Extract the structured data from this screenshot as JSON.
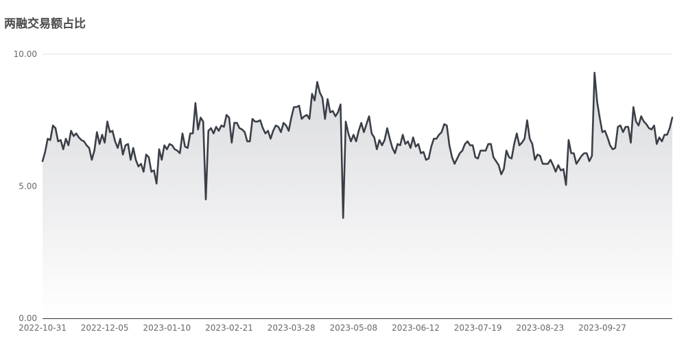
{
  "chart_data": {
    "type": "area",
    "title": "两融交易额占比",
    "xlabel": "",
    "ylabel": "",
    "ylim": [
      0,
      10
    ],
    "y_ticks": [
      "0.00",
      "5.00",
      "10.00"
    ],
    "y_tick_values": [
      0,
      5,
      10
    ],
    "x_tick_labels": [
      "2022-10-31",
      "2022-12-05",
      "2023-01-10",
      "2023-02-21",
      "2023-03-28",
      "2023-05-08",
      "2023-06-12",
      "2023-07-19",
      "2023-08-23",
      "2023-09-27"
    ],
    "x_tick_indices": [
      0,
      24,
      48,
      72,
      96,
      120,
      144,
      168,
      192,
      216
    ],
    "grid": true,
    "legend": "none",
    "colors": {
      "line": "#3a3f47",
      "area_top": "#d9dadd",
      "area_bottom": "#ffffff",
      "grid": "#e0e0e6",
      "axis": "#333333"
    },
    "values": [
      5.95,
      6.3,
      6.8,
      6.75,
      7.3,
      7.2,
      6.7,
      6.75,
      6.4,
      6.8,
      6.55,
      7.1,
      6.9,
      7.0,
      6.85,
      6.75,
      6.7,
      6.55,
      6.45,
      6.0,
      6.35,
      7.05,
      6.6,
      6.95,
      6.65,
      7.45,
      7.05,
      7.1,
      6.7,
      6.45,
      6.8,
      6.2,
      6.55,
      6.6,
      6.0,
      6.45,
      6.0,
      5.75,
      5.85,
      5.55,
      6.2,
      6.1,
      5.55,
      5.6,
      5.1,
      6.4,
      6.0,
      6.55,
      6.4,
      6.6,
      6.55,
      6.4,
      6.35,
      6.25,
      7.0,
      6.5,
      6.45,
      7.0,
      7.0,
      8.15,
      7.15,
      7.6,
      7.45,
      4.5,
      7.1,
      7.2,
      7.0,
      7.25,
      7.1,
      7.3,
      7.25,
      7.7,
      7.6,
      6.65,
      7.4,
      7.4,
      7.2,
      7.15,
      7.05,
      6.7,
      6.7,
      7.55,
      7.45,
      7.45,
      7.5,
      7.2,
      7.0,
      7.1,
      6.8,
      7.1,
      7.3,
      7.25,
      7.05,
      7.4,
      7.3,
      7.1,
      7.6,
      8.0,
      8.0,
      8.05,
      7.55,
      7.65,
      7.7,
      7.55,
      8.5,
      8.25,
      8.95,
      8.55,
      8.35,
      7.55,
      8.3,
      7.8,
      7.85,
      7.65,
      7.8,
      8.1,
      3.8,
      7.45,
      7.0,
      6.7,
      6.95,
      6.7,
      7.1,
      7.4,
      7.05,
      7.35,
      7.65,
      7.0,
      6.85,
      6.4,
      6.75,
      6.55,
      6.75,
      7.2,
      6.8,
      6.45,
      6.25,
      6.6,
      6.55,
      6.95,
      6.6,
      6.7,
      6.45,
      6.85,
      6.5,
      6.6,
      6.25,
      6.3,
      6.0,
      6.05,
      6.5,
      6.8,
      6.8,
      6.95,
      7.05,
      7.35,
      7.3,
      6.55,
      6.1,
      5.85,
      6.05,
      6.25,
      6.35,
      6.6,
      6.7,
      6.55,
      6.55,
      6.1,
      6.05,
      6.35,
      6.35,
      6.35,
      6.6,
      6.6,
      6.1,
      5.95,
      5.8,
      5.45,
      5.65,
      6.35,
      6.1,
      6.05,
      6.6,
      7.0,
      6.55,
      6.65,
      6.8,
      7.5,
      6.8,
      6.6,
      6.0,
      6.2,
      6.15,
      5.85,
      5.85,
      5.85,
      6.0,
      5.8,
      5.55,
      5.8,
      5.6,
      5.65,
      5.05,
      6.75,
      6.25,
      6.25,
      5.85,
      6.0,
      6.15,
      6.25,
      6.25,
      5.95,
      6.15,
      9.3,
      8.2,
      7.6,
      7.05,
      7.1,
      6.85,
      6.55,
      6.4,
      6.45,
      7.25,
      7.3,
      7.05,
      7.25,
      7.25,
      6.65,
      8.0,
      7.45,
      7.3,
      7.65,
      7.45,
      7.35,
      7.2,
      7.15,
      7.3,
      6.6,
      6.85,
      6.7,
      6.95,
      6.95,
      7.2,
      7.6
    ]
  }
}
